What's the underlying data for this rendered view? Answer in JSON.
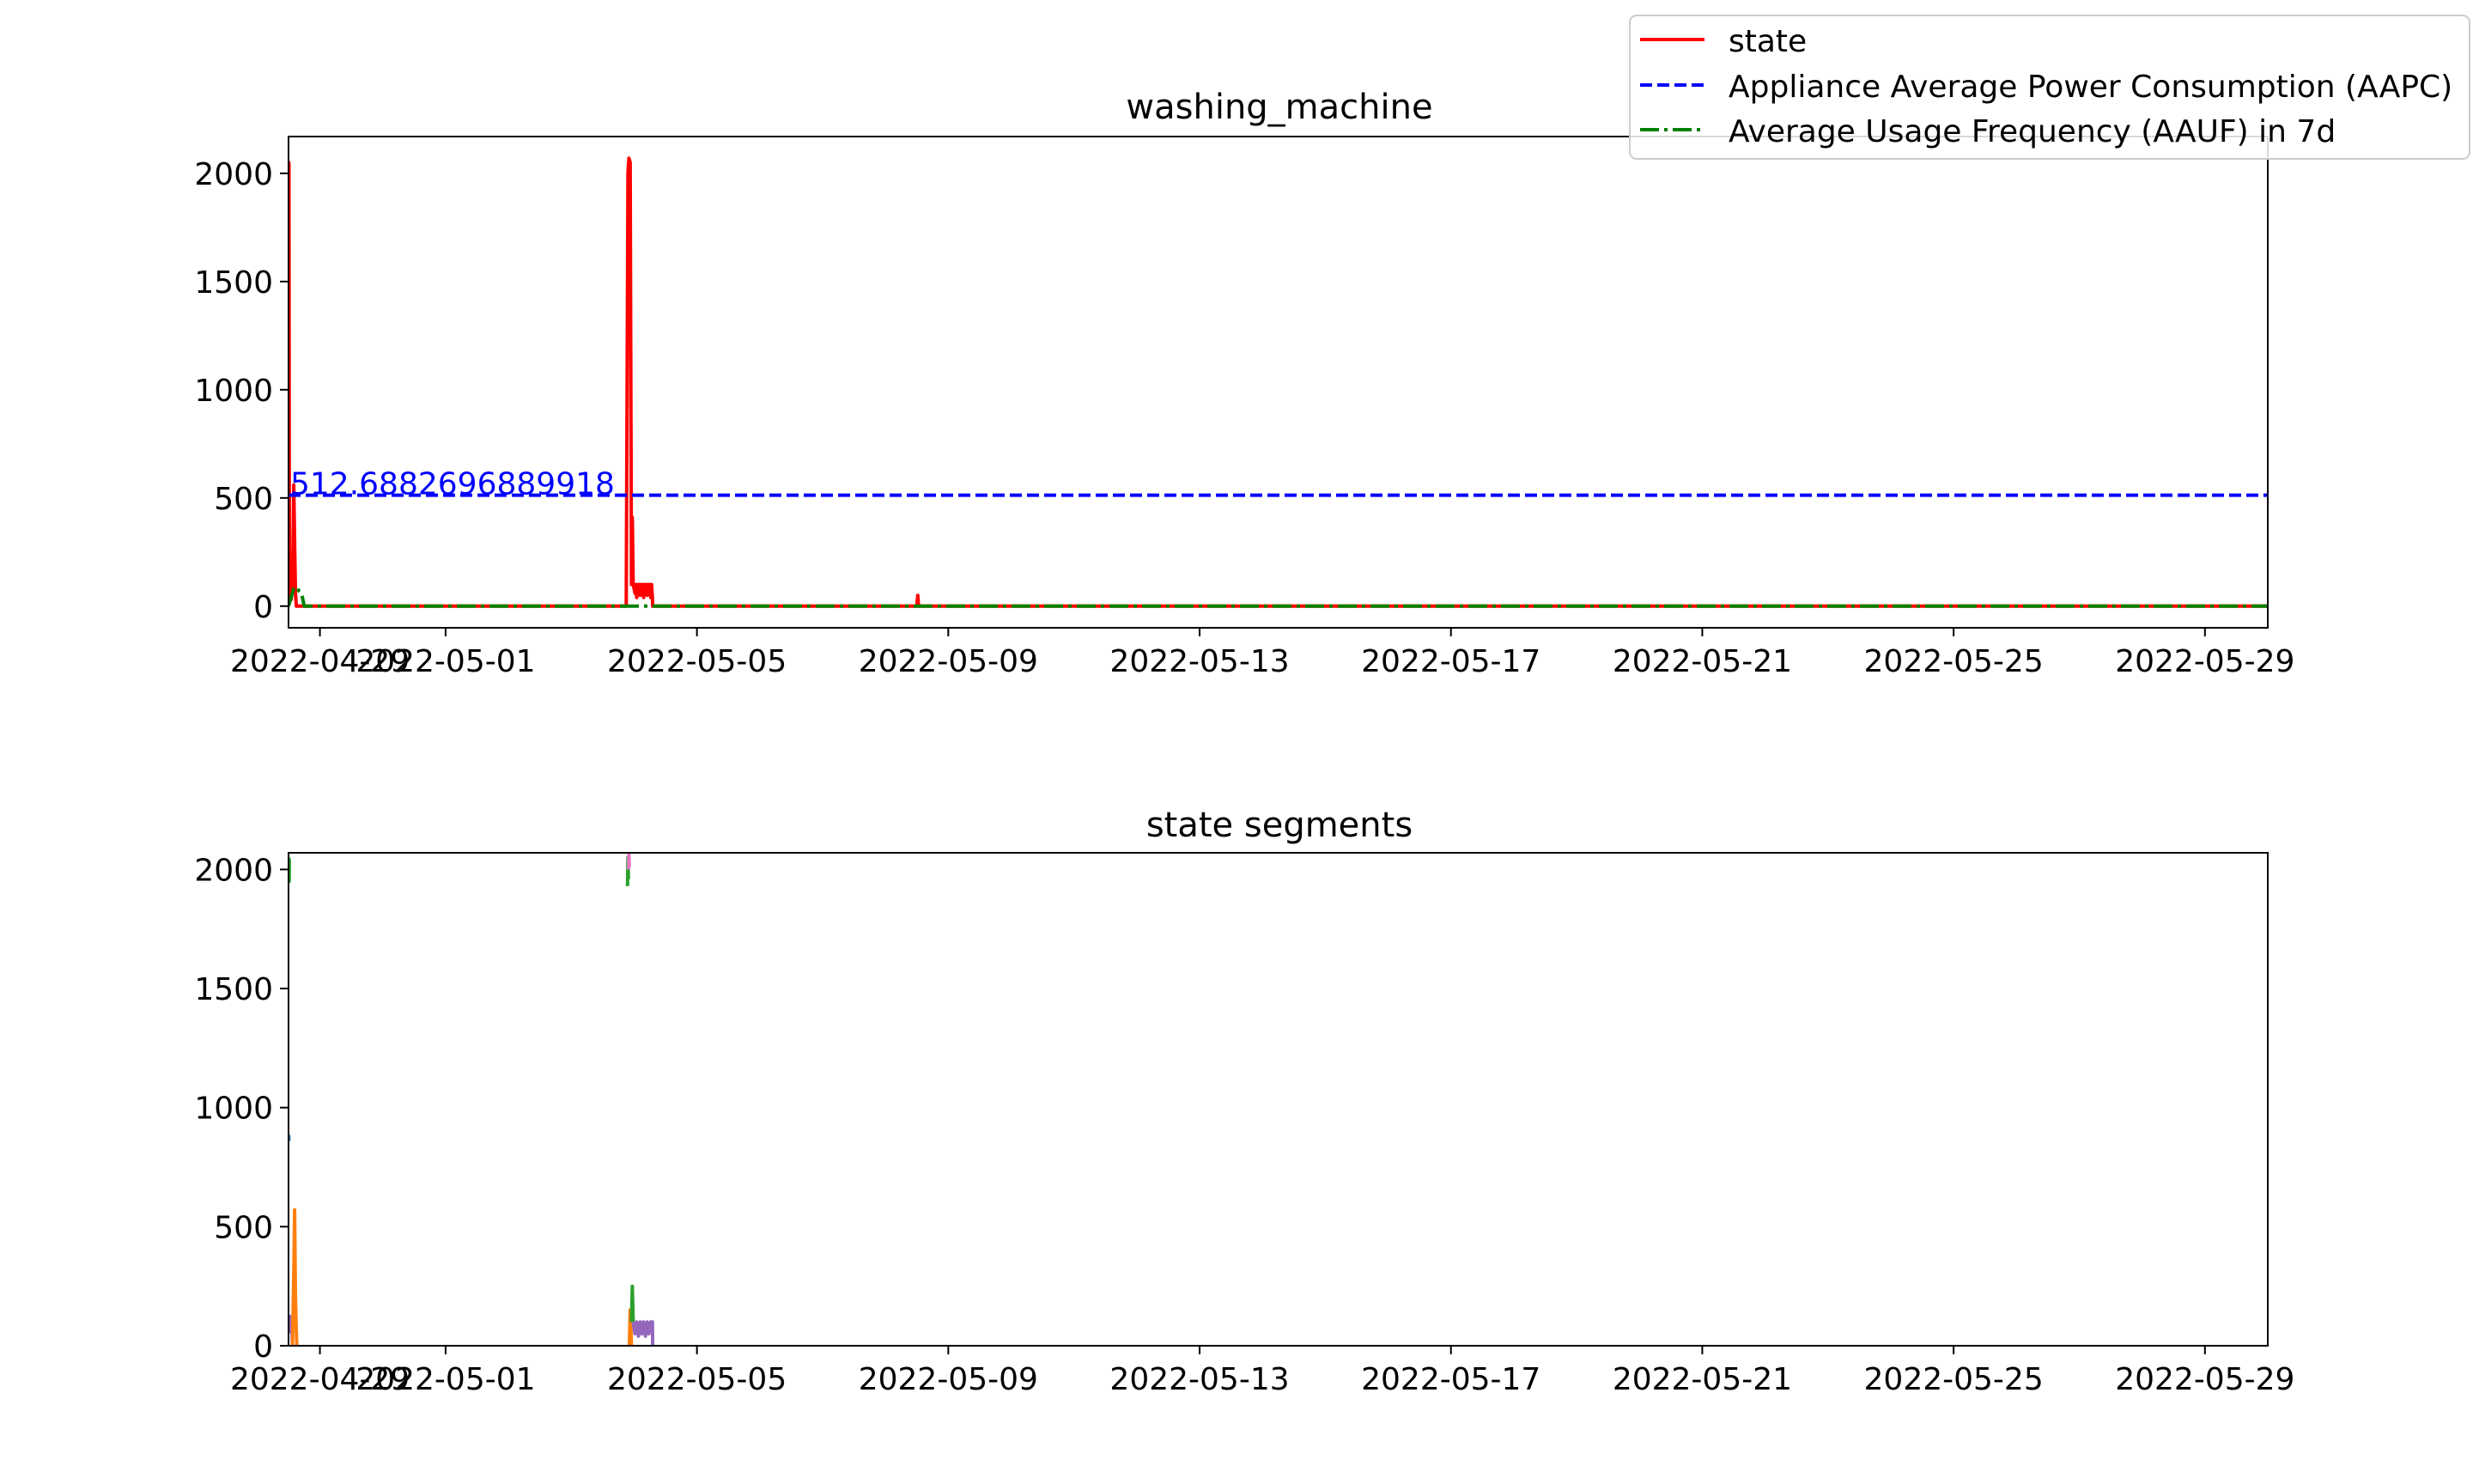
{
  "chart_data": [
    {
      "type": "line",
      "title": "washing_machine",
      "xlabel": "",
      "ylabel": "",
      "xlim": [
        "2022-04-28T12:00",
        "2022-05-30T00:00"
      ],
      "ylim": [
        -100,
        2170
      ],
      "x_ticks": [
        "2022-04-29",
        "2022-05-01",
        "2022-05-05",
        "2022-05-09",
        "2022-05-13",
        "2022-05-17",
        "2022-05-21",
        "2022-05-25",
        "2022-05-29"
      ],
      "y_ticks": [
        0,
        500,
        1000,
        1500,
        2000
      ],
      "grid": false,
      "legend": {
        "placement": "top-right"
      },
      "annotation": "512.6882696889918",
      "series": [
        {
          "name": "state",
          "color": "#ff0000",
          "style": "solid",
          "x": [
            "2022-04-28T12:00",
            "2022-04-28T12:05",
            "2022-04-28T12:10",
            "2022-04-28T12:20",
            "2022-04-28T12:40",
            "2022-04-28T13:00",
            "2022-04-28T13:30",
            "2022-04-28T14:00",
            "2022-04-28T14:20",
            "2022-04-28T14:40",
            "2022-04-28T15:00",
            "2022-04-28T15:10",
            "2022-05-03T21:00",
            "2022-05-03T21:40",
            "2022-05-03T22:00",
            "2022-05-03T22:30",
            "2022-05-03T23:00",
            "2022-05-03T23:20",
            "2022-05-03T23:40",
            "2022-05-04T00:00",
            "2022-05-04T00:20",
            "2022-05-04T00:40",
            "2022-05-04T01:00",
            "2022-05-04T01:20",
            "2022-05-04T01:40",
            "2022-05-04T02:00",
            "2022-05-04T02:20",
            "2022-05-04T02:40",
            "2022-05-04T03:00",
            "2022-05-04T03:20",
            "2022-05-04T03:40",
            "2022-05-04T04:00",
            "2022-05-04T04:20",
            "2022-05-04T04:40",
            "2022-05-04T05:00",
            "2022-05-04T05:20",
            "2022-05-04T05:40",
            "2022-05-04T06:00",
            "2022-05-04T06:20",
            "2022-05-04T06:40",
            "2022-05-04T07:00",
            "2022-05-04T07:05",
            "2022-05-08T12:00",
            "2022-05-08T12:20",
            "2022-05-08T12:40",
            "2022-05-30T00:00"
          ],
          "y": [
            0,
            2050,
            2040,
            200,
            100,
            30,
            80,
            560,
            300,
            60,
            0,
            0,
            0,
            2000,
            2070,
            2050,
            100,
            410,
            100,
            80,
            60,
            100,
            40,
            100,
            60,
            100,
            50,
            100,
            60,
            100,
            40,
            100,
            60,
            100,
            50,
            100,
            60,
            100,
            40,
            100,
            40,
            0,
            0,
            50,
            0,
            0
          ]
        },
        {
          "name": "Appliance Average Power Consumption (AAPC)",
          "color": "#0000ff",
          "style": "dashed",
          "x": [
            "2022-04-28T12:00",
            "2022-05-30T00:00"
          ],
          "y": [
            512.6882696889918,
            512.6882696889918
          ]
        },
        {
          "name": "Average Usage Frequency (AAUF) in 7d",
          "color": "#008000",
          "style": "dashdot",
          "x": [
            "2022-04-28T12:00",
            "2022-04-28T13:00",
            "2022-04-28T14:00",
            "2022-04-28T15:00",
            "2022-04-28T16:00",
            "2022-04-28T17:00",
            "2022-04-28T18:00",
            "2022-05-30T00:00"
          ],
          "y": [
            0,
            40,
            80,
            90,
            70,
            60,
            0,
            0
          ]
        }
      ]
    },
    {
      "type": "line",
      "title": "state segments",
      "xlabel": "",
      "ylabel": "",
      "xlim": [
        "2022-04-28T12:00",
        "2022-05-30T00:00"
      ],
      "ylim": [
        0,
        2070
      ],
      "x_ticks": [
        "2022-04-29",
        "2022-05-01",
        "2022-05-05",
        "2022-05-09",
        "2022-05-13",
        "2022-05-17",
        "2022-05-21",
        "2022-05-25",
        "2022-05-29"
      ],
      "y_ticks": [
        0,
        500,
        1000,
        1500,
        2000
      ],
      "grid": false,
      "series": [
        {
          "color": "#1f77b4",
          "x": [
            "2022-04-28T12:00",
            "2022-04-28T12:05",
            "2022-04-28T12:10"
          ],
          "y": [
            860,
            880,
            860
          ]
        },
        {
          "color": "#2ca02c",
          "x": [
            "2022-04-28T12:10",
            "2022-04-28T12:15",
            "2022-04-28T12:20"
          ],
          "y": [
            2050,
            1950,
            2040
          ]
        },
        {
          "color": "#9467bd",
          "x": [
            "2022-04-28T12:20",
            "2022-04-28T12:40",
            "2022-04-28T13:00",
            "2022-04-28T13:20",
            "2022-04-28T13:30"
          ],
          "y": [
            130,
            60,
            120,
            40,
            0
          ]
        },
        {
          "color": "#ff7f0e",
          "x": [
            "2022-04-28T13:30",
            "2022-04-28T14:00",
            "2022-04-28T14:20",
            "2022-04-28T14:40",
            "2022-04-28T15:00",
            "2022-04-28T15:10"
          ],
          "y": [
            0,
            300,
            570,
            200,
            60,
            0
          ]
        },
        {
          "color": "#2ca02c",
          "x": [
            "2022-05-03T21:30",
            "2022-05-03T21:40",
            "2022-05-03T21:50"
          ],
          "y": [
            1930,
            2050,
            1960
          ]
        },
        {
          "color": "#e377c2",
          "x": [
            "2022-05-03T21:50",
            "2022-05-03T22:00",
            "2022-05-03T22:10"
          ],
          "y": [
            2000,
            2070,
            2010
          ]
        },
        {
          "color": "#ff7f0e",
          "x": [
            "2022-05-03T22:10",
            "2022-05-03T22:30",
            "2022-05-03T22:50",
            "2022-05-03T23:00"
          ],
          "y": [
            0,
            150,
            60,
            0
          ]
        },
        {
          "color": "#2ca02c",
          "x": [
            "2022-05-03T23:00",
            "2022-05-03T23:20",
            "2022-05-03T23:40"
          ],
          "y": [
            100,
            250,
            100
          ]
        },
        {
          "color": "#9467bd",
          "x": [
            "2022-05-03T23:40",
            "2022-05-04T00:20",
            "2022-05-04T01:00",
            "2022-05-04T01:40",
            "2022-05-04T02:20",
            "2022-05-04T03:00",
            "2022-05-04T03:40",
            "2022-05-04T04:20",
            "2022-05-04T05:00",
            "2022-05-04T05:40",
            "2022-05-04T06:20",
            "2022-05-04T07:00",
            "2022-05-04T07:05"
          ],
          "y": [
            100,
            50,
            100,
            40,
            100,
            50,
            100,
            40,
            100,
            50,
            100,
            100,
            0
          ]
        }
      ]
    }
  ]
}
